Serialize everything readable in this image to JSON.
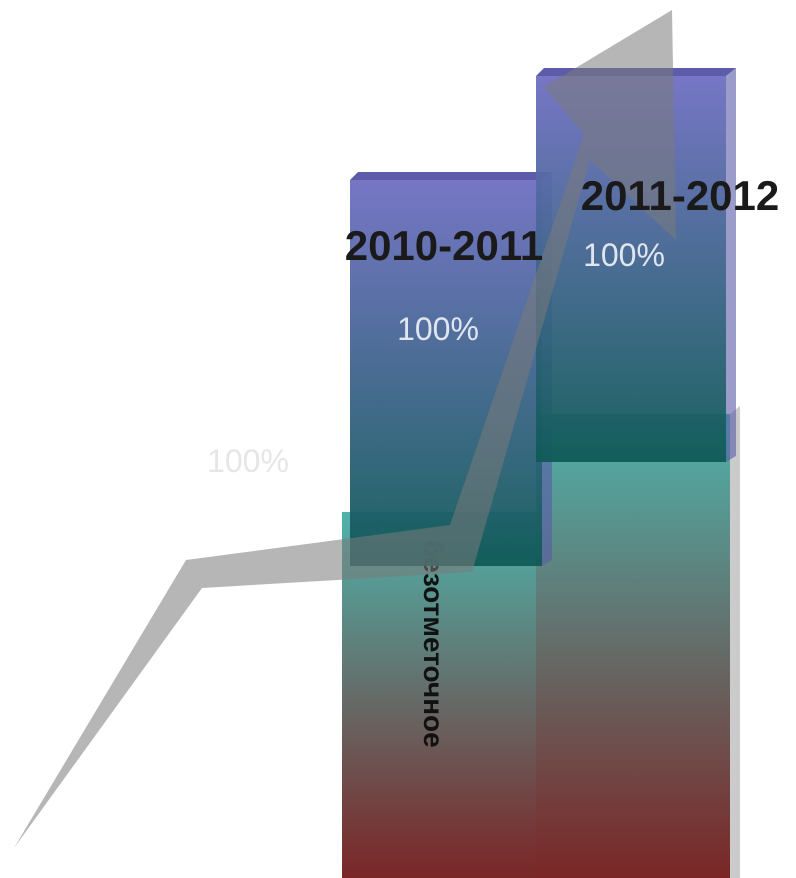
{
  "chart_data": {
    "type": "bar",
    "categories": [
      "2010-2011",
      "2011-2012"
    ],
    "series": [
      {
        "values": [
          100,
          100
        ],
        "color_top": "#6f6fc2",
        "color_bottom": "#0f5a57"
      },
      {
        "name": "безотметочное",
        "values": [
          100,
          100
        ],
        "color_top": "#4fb3ac",
        "color_bottom": "#7a2626"
      }
    ],
    "data_labels": [
      "100%",
      "100%",
      "100%"
    ],
    "ylim": [
      0,
      100
    ],
    "grid": false,
    "trend_arrow": true,
    "arrow_color": "#9a9a9a"
  }
}
